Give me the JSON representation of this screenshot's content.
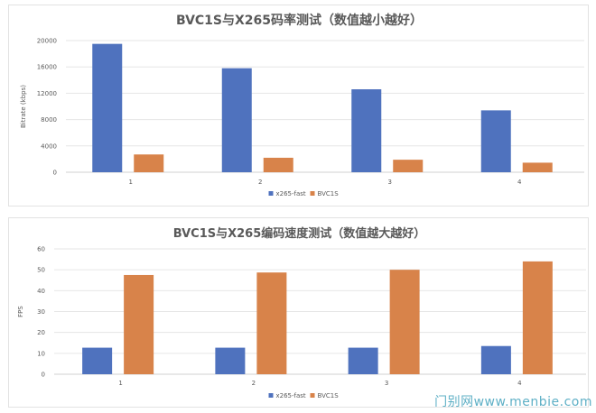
{
  "chart_data": [
    {
      "type": "bar",
      "title": "BVC1S与X265码率测试（数值越小越好）",
      "xlabel": "",
      "ylabel": "Bitrate (kbps)",
      "ylim": [
        0,
        20000
      ],
      "yticks": [
        0,
        4000,
        8000,
        12000,
        16000,
        20000
      ],
      "categories": [
        "1",
        "2",
        "3",
        "4"
      ],
      "grid": true,
      "legend_position": "bottom",
      "series": [
        {
          "name": "x265-fast",
          "color": "#4f72be",
          "values": [
            19500,
            15800,
            12600,
            9400
          ]
        },
        {
          "name": "BVC1S",
          "color": "#d8834a",
          "values": [
            2700,
            2200,
            1900,
            1450
          ]
        }
      ]
    },
    {
      "type": "bar",
      "title": "BVC1S与X265编码速度测试（数值越大越好）",
      "xlabel": "",
      "ylabel": "FPS",
      "ylim": [
        0,
        60
      ],
      "yticks": [
        0,
        10,
        20,
        30,
        40,
        50,
        60
      ],
      "categories": [
        "1",
        "2",
        "3",
        "4"
      ],
      "grid": true,
      "legend_position": "bottom",
      "series": [
        {
          "name": "x265-fast",
          "color": "#4f72be",
          "values": [
            12.7,
            12.7,
            12.7,
            13.5
          ]
        },
        {
          "name": "BVC1S",
          "color": "#d8834a",
          "values": [
            47.5,
            48.7,
            50,
            54
          ]
        }
      ]
    }
  ],
  "watermark": "门别网www.menbie.com"
}
